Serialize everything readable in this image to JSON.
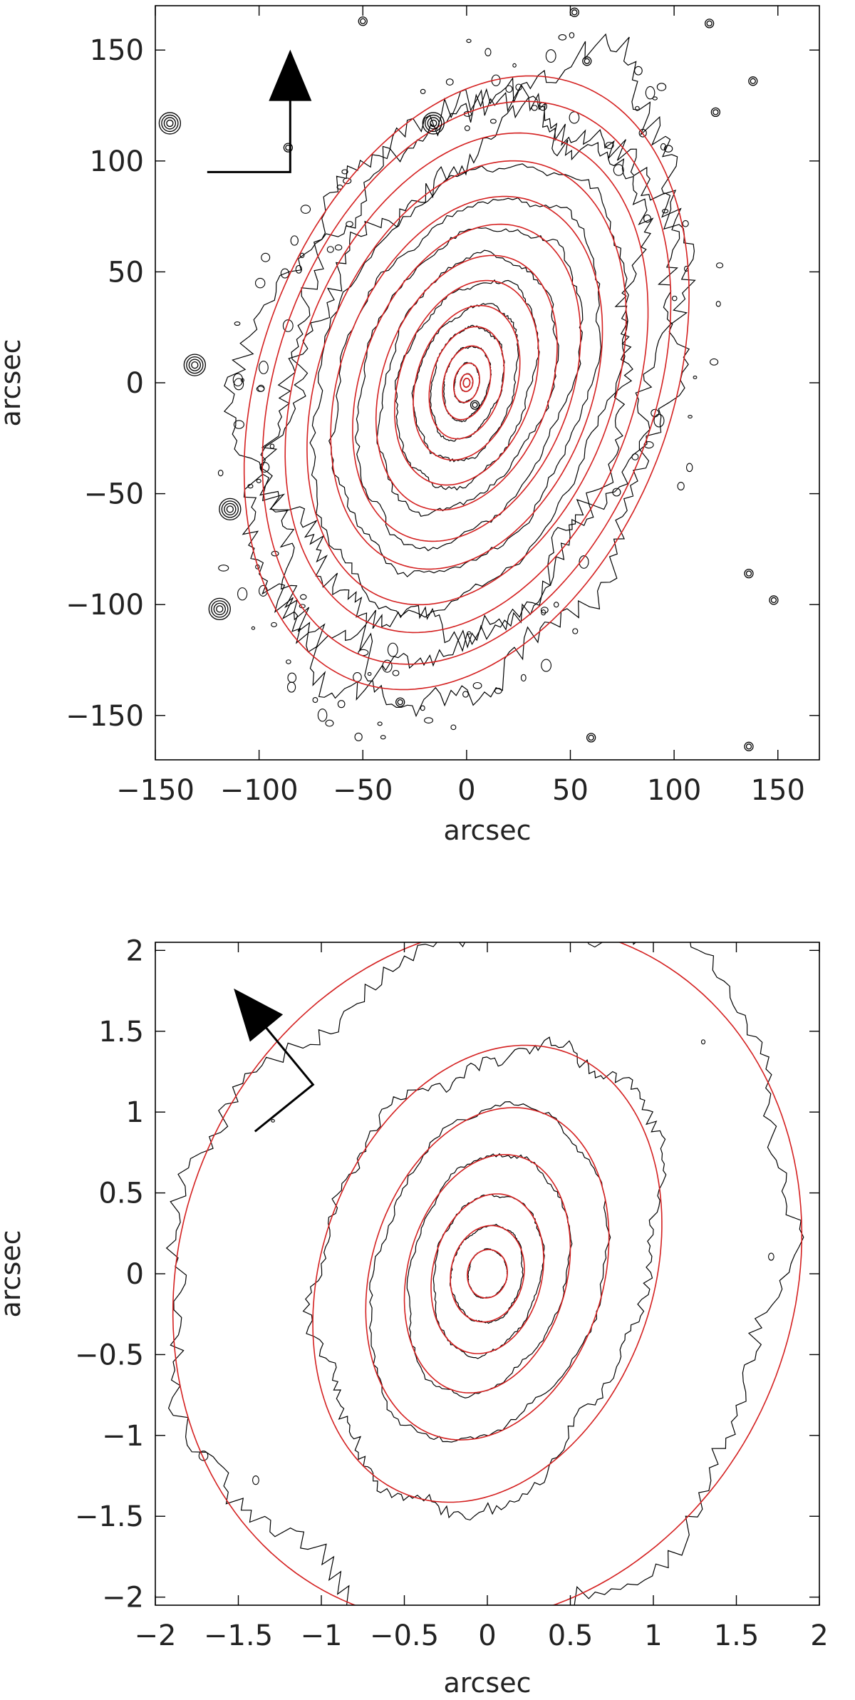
{
  "colors": {
    "contour": "#000000",
    "fit": "#d42020",
    "axis": "#000000"
  },
  "chart_data": [
    {
      "type": "contour",
      "xlabel": "arcsec",
      "ylabel": "arcsec",
      "xlim": [
        -150,
        170
      ],
      "ylim": [
        -170,
        170
      ],
      "xticks": [
        -150,
        -100,
        -50,
        0,
        50,
        100,
        150
      ],
      "xtick_labels": [
        "−150",
        "−100",
        "−50",
        "0",
        "50",
        "100",
        "150"
      ],
      "yticks": [
        -150,
        -100,
        -50,
        0,
        50,
        100,
        150
      ],
      "ytick_labels": [
        "−150",
        "−100",
        "−50",
        "0",
        "50",
        "100",
        "150"
      ],
      "fit_ellipses": [
        {
          "a": 2,
          "b": 1.6,
          "pa": 10
        },
        {
          "a": 4,
          "b": 3,
          "pa": 12
        },
        {
          "a": 9,
          "b": 6,
          "pa": 14
        },
        {
          "a": 17,
          "b": 11,
          "pa": 16
        },
        {
          "a": 26,
          "b": 17,
          "pa": 18
        },
        {
          "a": 36,
          "b": 24,
          "pa": 20
        },
        {
          "a": 48,
          "b": 32,
          "pa": 22
        },
        {
          "a": 60,
          "b": 40,
          "pa": 23
        },
        {
          "a": 75,
          "b": 50,
          "pa": 24
        },
        {
          "a": 88,
          "b": 60,
          "pa": 24
        },
        {
          "a": 105,
          "b": 70,
          "pa": 24
        },
        {
          "a": 118,
          "b": 80,
          "pa": 24
        },
        {
          "a": 133,
          "b": 90,
          "pa": 24
        },
        {
          "a": 145,
          "b": 98,
          "pa": 24
        }
      ],
      "stars": [
        {
          "x": -143,
          "y": 117
        },
        {
          "x": -131,
          "y": 8
        },
        {
          "x": -114,
          "y": -57
        },
        {
          "x": -119,
          "y": -102
        },
        {
          "x": -16,
          "y": 117
        },
        {
          "x": 4,
          "y": -10
        },
        {
          "x": 52,
          "y": 167
        },
        {
          "x": 58,
          "y": 145
        },
        {
          "x": 117,
          "y": 162
        },
        {
          "x": 138,
          "y": 136
        },
        {
          "x": 136,
          "y": -86
        },
        {
          "x": 136,
          "y": -164
        },
        {
          "x": 60,
          "y": -160
        },
        {
          "x": -50,
          "y": 163
        },
        {
          "x": -32,
          "y": -144
        },
        {
          "x": -86,
          "y": 106
        },
        {
          "x": 120,
          "y": 122
        },
        {
          "x": 148,
          "y": -98
        }
      ],
      "north_arrow": {
        "head": [
          -85,
          147
        ],
        "corner": [
          -85,
          95
        ],
        "tail": [
          -125,
          95
        ]
      }
    },
    {
      "type": "contour",
      "xlabel": "arcsec",
      "ylabel": "arcsec",
      "xlim": [
        -2,
        2
      ],
      "ylim": [
        -2.05,
        2.05
      ],
      "xticks": [
        -2,
        -1.5,
        -1,
        -0.5,
        0,
        0.5,
        1,
        1.5,
        2
      ],
      "xtick_labels": [
        "−2",
        "−1.5",
        "−1",
        "−0.5",
        "0",
        "0.5",
        "1",
        "1.5",
        "2"
      ],
      "yticks": [
        -2,
        -1.5,
        -1,
        -0.5,
        0,
        0.5,
        1,
        1.5,
        2
      ],
      "ytick_labels": [
        "−2",
        "−1.5",
        "−1",
        "−0.5",
        "0",
        "0.5",
        "1",
        "1.5",
        "2"
      ],
      "fit_ellipses": [
        {
          "a": 0.15,
          "b": 0.12,
          "pa": 8
        },
        {
          "a": 0.3,
          "b": 0.22,
          "pa": 10
        },
        {
          "a": 0.5,
          "b": 0.33,
          "pa": 12
        },
        {
          "a": 0.75,
          "b": 0.48,
          "pa": 14
        },
        {
          "a": 1.05,
          "b": 0.7,
          "pa": 16
        },
        {
          "a": 1.45,
          "b": 1.0,
          "pa": 18
        },
        {
          "a": 2.2,
          "b": 1.85,
          "pa": 20
        }
      ],
      "north_arrow": {
        "head": [
          -1.5,
          1.73
        ],
        "corner": [
          -1.05,
          1.17
        ],
        "tail": [
          -1.4,
          0.88
        ]
      }
    }
  ]
}
